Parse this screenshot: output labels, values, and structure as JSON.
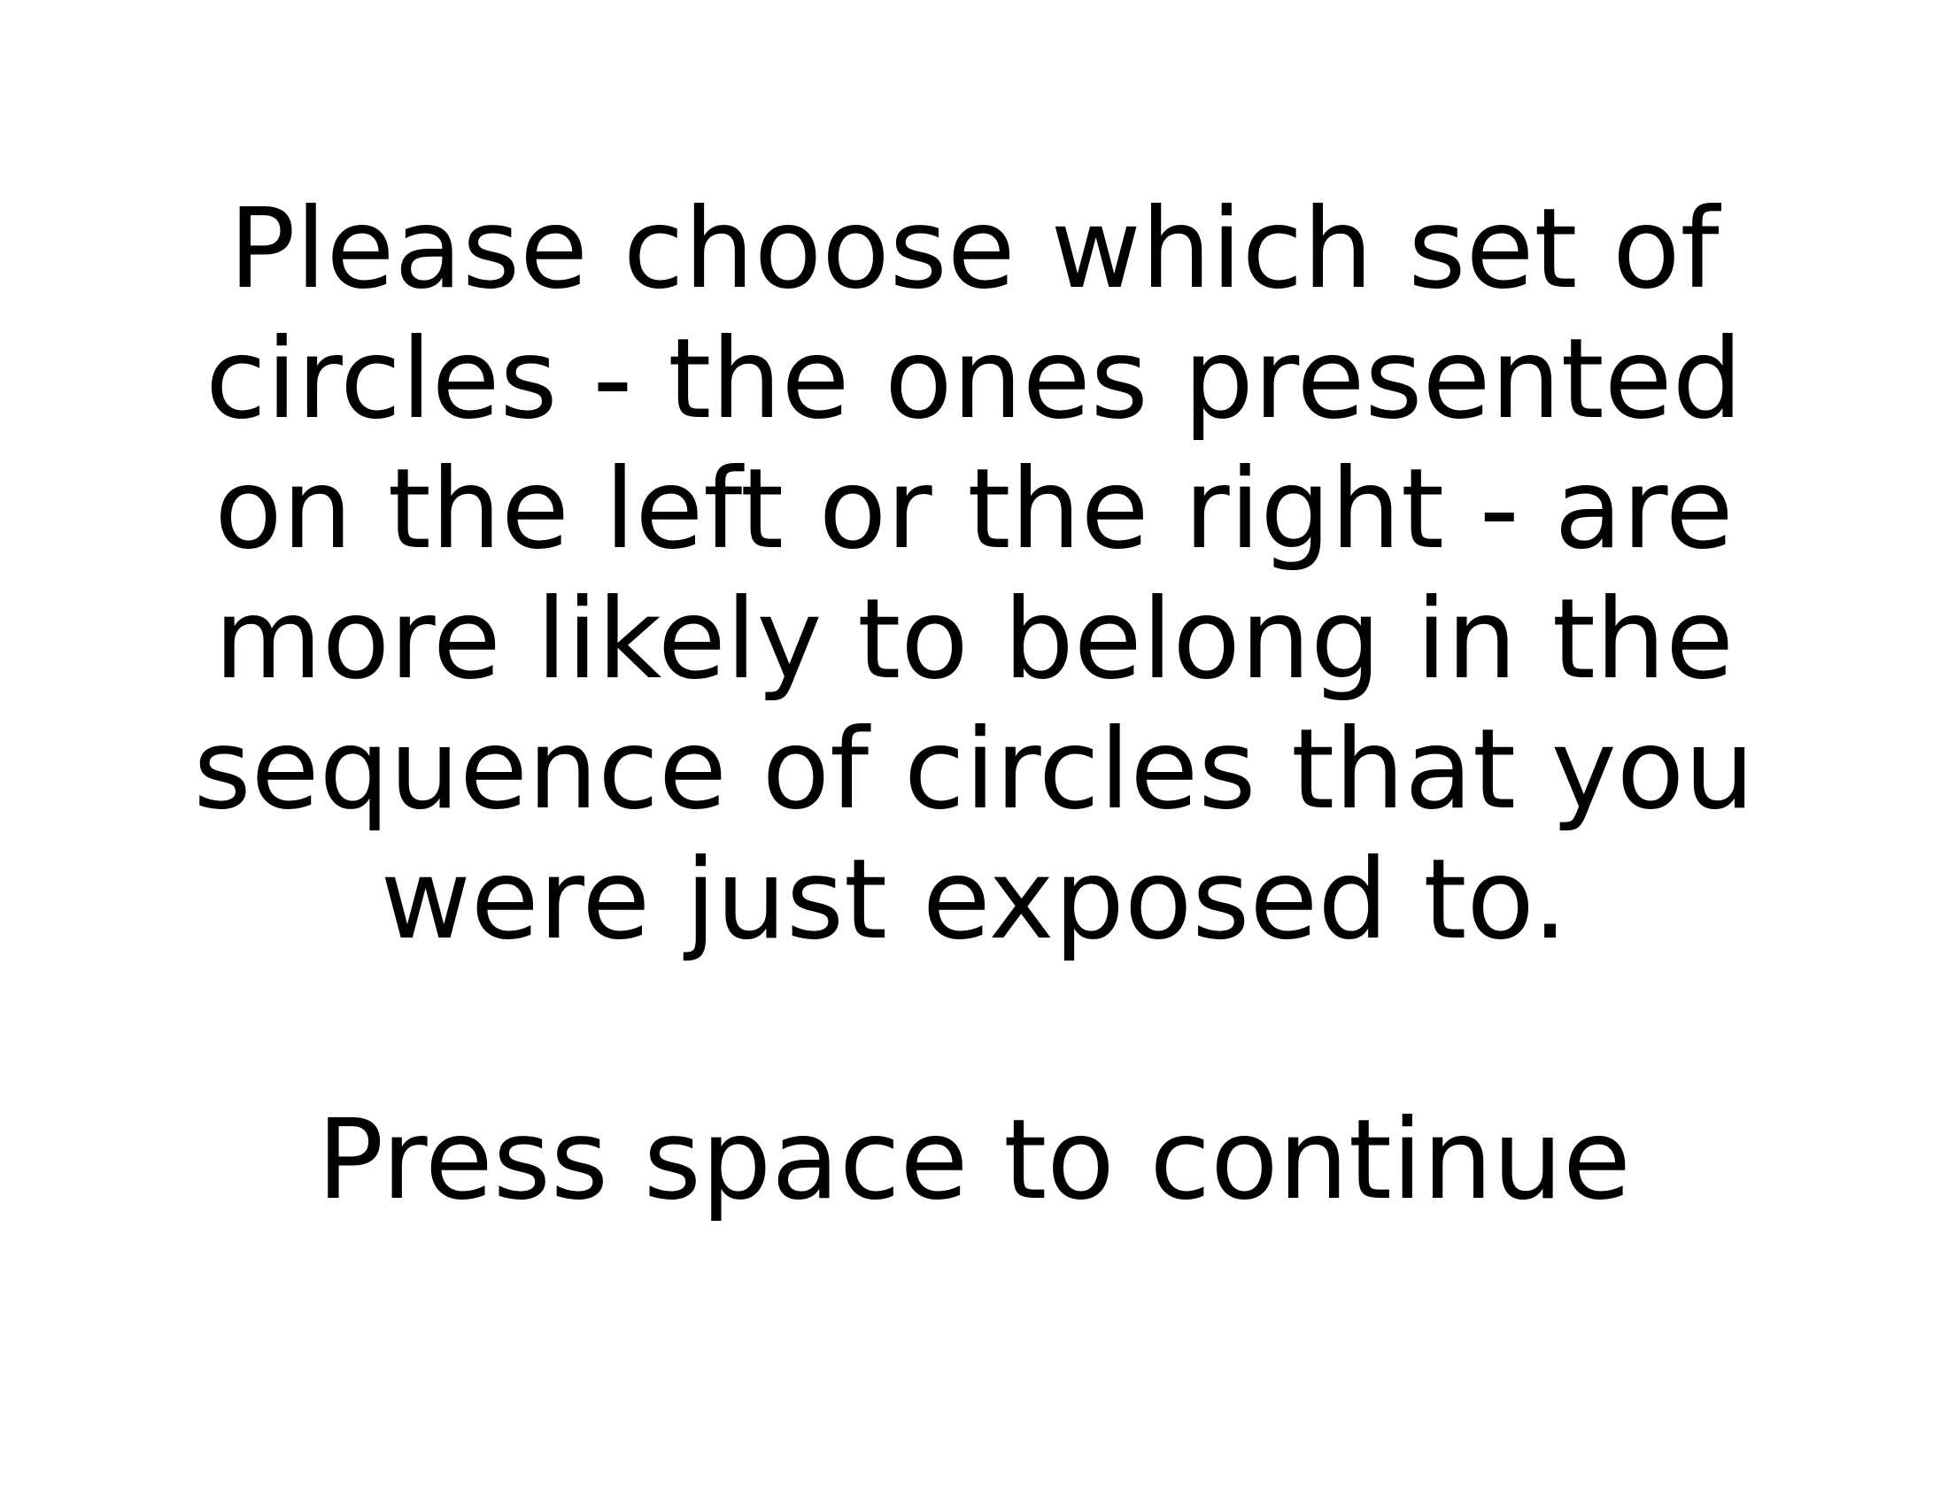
{
  "screen": {
    "background_color": "#ffffff",
    "text_color": "#000000"
  },
  "instructions": {
    "lines": [
      "Please choose which set of",
      "circles - the ones presented",
      "on the left or the right - are",
      "more likely to belong in the",
      "sequence of circles that you",
      "were just exposed to."
    ],
    "continue_prompt": "Press space to continue"
  }
}
